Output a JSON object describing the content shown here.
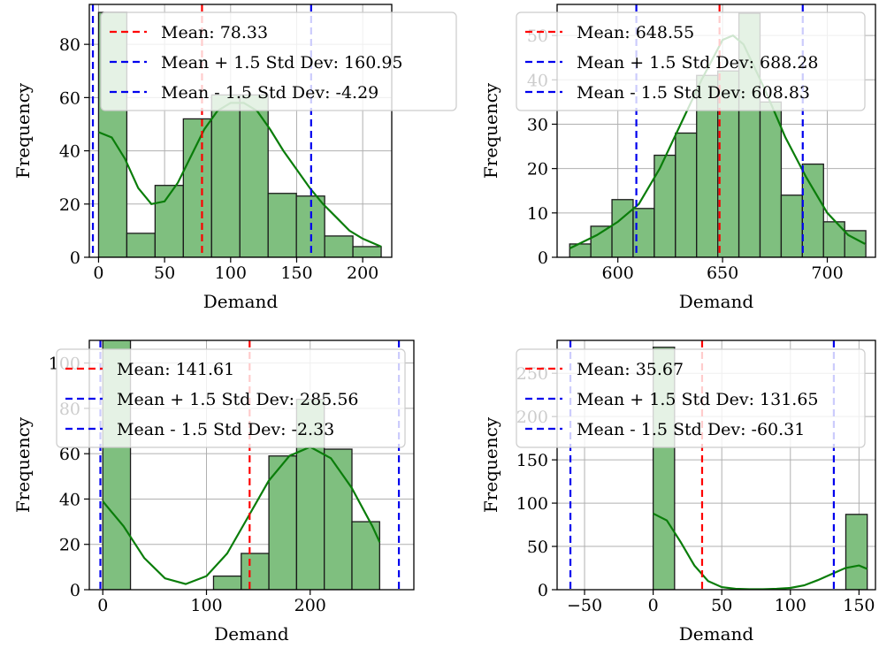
{
  "colors": {
    "bar_fill": "#7fbf7f",
    "bar_edge": "#1a1a1a",
    "kde": "#0a7d0a",
    "mean": "#ff0000",
    "std": "#0000ee",
    "grid": "#b0b0b0"
  },
  "chart_data": [
    {
      "type": "bar",
      "xlabel": "Demand",
      "ylabel": "Frequency",
      "xlim": [
        -7,
        222
      ],
      "ylim": [
        0,
        95
      ],
      "xticks": [
        0,
        50,
        100,
        150,
        200
      ],
      "yticks": [
        0,
        20,
        40,
        60,
        80
      ],
      "grid": true,
      "legend_position": "top-right",
      "bin_edges": [
        0,
        21.4,
        42.8,
        64.2,
        85.6,
        107,
        128.4,
        149.8,
        171.2,
        192.6,
        214
      ],
      "counts": [
        92,
        9,
        27,
        52,
        61,
        61,
        24,
        23,
        8,
        4
      ],
      "kde": {
        "x": [
          0,
          10,
          20,
          30,
          40,
          50,
          60,
          70,
          80,
          90,
          100,
          110,
          120,
          130,
          140,
          150,
          160,
          170,
          180,
          190,
          200,
          214
        ],
        "y": [
          47,
          45,
          37,
          26,
          20,
          21,
          28,
          38,
          48,
          55,
          58,
          58,
          55,
          48,
          40,
          33,
          26,
          20,
          15,
          10,
          7,
          4
        ]
      },
      "mean": 78.33,
      "upper": 160.95,
      "lower": -4.29,
      "legend": [
        "Mean: 78.33",
        "Mean + 1.5 Std Dev: 160.95",
        "Mean - 1.5 Std Dev: -4.29"
      ]
    },
    {
      "type": "bar",
      "xlabel": "Demand",
      "ylabel": "Frequency",
      "xlim": [
        571,
        723
      ],
      "ylim": [
        0,
        57
      ],
      "xticks": [
        600,
        650,
        700
      ],
      "yticks": [
        0,
        10,
        20,
        30,
        40,
        50
      ],
      "grid": true,
      "legend_position": "top-right",
      "bin_edges": [
        577,
        587.1,
        597.2,
        607.3,
        617.4,
        627.5,
        637.6,
        647.7,
        657.8,
        667.9,
        678,
        688.1,
        698.2,
        708.3,
        718.4
      ],
      "counts": [
        3,
        7,
        13,
        11,
        23,
        28,
        41,
        42,
        55,
        35,
        14,
        21,
        8,
        6
      ],
      "kde": {
        "x": [
          577,
          590,
          600,
          610,
          620,
          630,
          640,
          650,
          655,
          660,
          670,
          680,
          690,
          700,
          710,
          718
        ],
        "y": [
          2,
          5,
          8,
          12,
          20,
          30,
          40,
          49,
          50,
          48,
          38,
          27,
          18,
          10,
          5,
          3
        ]
      },
      "mean": 648.55,
      "upper": 688.28,
      "lower": 608.83,
      "legend": [
        "Mean: 648.55",
        "Mean + 1.5 Std Dev: 688.28",
        "Mean - 1.5 Std Dev: 608.83"
      ]
    },
    {
      "type": "bar",
      "xlabel": "Demand",
      "ylabel": "Frequency",
      "xlim": [
        -13,
        300
      ],
      "ylim": [
        0,
        110
      ],
      "xticks": [
        0,
        100,
        200
      ],
      "yticks": [
        0,
        20,
        40,
        60,
        80,
        100
      ],
      "grid": true,
      "legend_position": "top-right",
      "bin_edges": [
        0,
        26.7,
        53.4,
        80.1,
        106.8,
        133.5,
        160.2,
        186.9,
        213.6,
        240.3,
        267
      ],
      "counts": [
        110,
        0,
        0,
        0,
        6,
        16,
        59,
        84,
        62,
        30
      ],
      "kde": {
        "x": [
          0,
          20,
          40,
          60,
          80,
          100,
          120,
          140,
          160,
          180,
          200,
          220,
          240,
          260,
          267
        ],
        "y": [
          39,
          28,
          14,
          5,
          2.5,
          6,
          16,
          32,
          48,
          59,
          63,
          58,
          45,
          28,
          21
        ]
      },
      "mean": 141.61,
      "upper": 285.56,
      "lower": -2.33,
      "legend": [
        "Mean: 141.61",
        "Mean + 1.5 Std Dev: 285.56",
        "Mean - 1.5 Std Dev: -2.33"
      ]
    },
    {
      "type": "bar",
      "xlabel": "Demand",
      "ylabel": "Frequency",
      "xlim": [
        -70,
        162
      ],
      "ylim": [
        0,
        288
      ],
      "xticks": [
        -50,
        0,
        50,
        100,
        150
      ],
      "yticks": [
        0,
        50,
        100,
        150,
        200,
        250
      ],
      "grid": true,
      "legend_position": "top-right",
      "bin_edges": [
        0,
        15.6,
        31.2,
        46.8,
        62.4,
        78,
        93.6,
        109.2,
        124.8,
        140.4,
        156
      ],
      "counts": [
        280,
        0,
        0,
        0,
        0,
        0,
        0,
        0,
        0,
        87
      ],
      "kde": {
        "x": [
          0,
          10,
          20,
          30,
          40,
          50,
          60,
          70,
          80,
          90,
          100,
          110,
          120,
          130,
          140,
          150,
          156
        ],
        "y": [
          88,
          80,
          55,
          28,
          10,
          3,
          1,
          0.5,
          0.5,
          1,
          2,
          5,
          11,
          18,
          25,
          28,
          24
        ]
      },
      "mean": 35.67,
      "upper": 131.65,
      "lower": -60.31,
      "legend": [
        "Mean: 35.67",
        "Mean + 1.5 Std Dev: 131.65",
        "Mean - 1.5 Std Dev: -60.31"
      ]
    }
  ]
}
